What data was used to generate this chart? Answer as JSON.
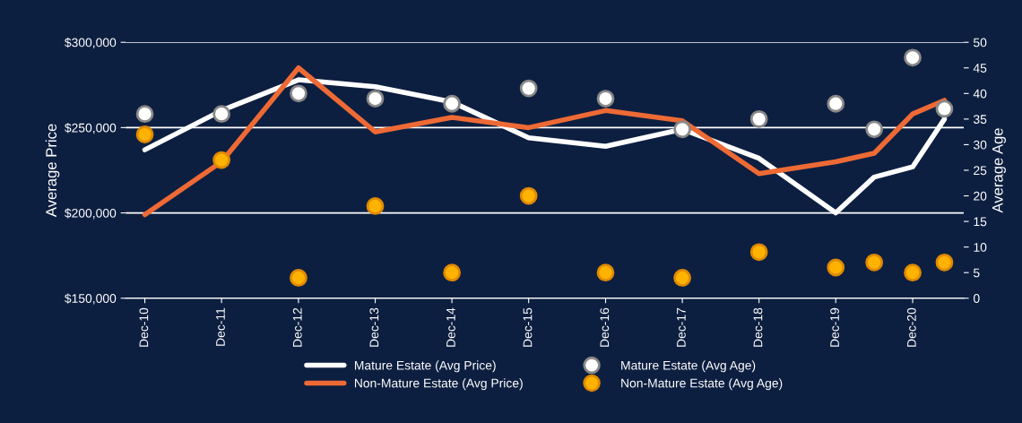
{
  "chart_data": {
    "type": "line",
    "ylabel": "Average Price",
    "y2label": "Average Age",
    "x": [
      "2010-12-01",
      "2011-12-01",
      "2012-12-01",
      "2013-12-01",
      "2014-12-01",
      "2015-12-01",
      "2016-12-01",
      "2017-12-01",
      "2018-12-01",
      "2019-12-01",
      "2020-06-01",
      "2020-12-01",
      "2021-05-01"
    ],
    "xlim": [
      "2010-09-01",
      "2021-08-01"
    ],
    "xticks": [
      {
        "value": "2010-12-01",
        "label": "Dec-10"
      },
      {
        "value": "2011-12-01",
        "label": "Dec-11"
      },
      {
        "value": "2012-12-01",
        "label": "Dec-12"
      },
      {
        "value": "2013-12-01",
        "label": "Dec-13"
      },
      {
        "value": "2014-12-01",
        "label": "Dec-14"
      },
      {
        "value": "2015-12-01",
        "label": "Dec-15"
      },
      {
        "value": "2016-12-01",
        "label": "Dec-16"
      },
      {
        "value": "2017-12-01",
        "label": "Dec-17"
      },
      {
        "value": "2018-12-01",
        "label": "Dec-18"
      },
      {
        "value": "2019-12-01",
        "label": "Dec-19"
      },
      {
        "value": "2020-12-01",
        "label": "Dec-20"
      }
    ],
    "ylim": [
      150000,
      300000
    ],
    "yticks": [
      {
        "value": 150000,
        "label": "$150,000"
      },
      {
        "value": 200000,
        "label": "$200,000"
      },
      {
        "value": 250000,
        "label": "$250,000"
      },
      {
        "value": 300000,
        "label": "$300,000"
      }
    ],
    "y2lim": [
      0,
      50
    ],
    "y2ticks": [
      0,
      5,
      10,
      15,
      20,
      25,
      30,
      35,
      40,
      45,
      50
    ],
    "grid": "y",
    "legend": "bottom",
    "series": [
      {
        "name": "Mature Estate (Avg Price)",
        "color": "#ffffff",
        "values": [
          237000,
          260000,
          278000,
          274000,
          265000,
          244000,
          239000,
          249000,
          232000,
          200000,
          221000,
          227000,
          255000
        ]
      },
      {
        "name": "Non-Mature Estate (Avg Price)",
        "color": "#ee6a35",
        "values": [
          199000,
          230000,
          285000,
          247500,
          256000,
          250000,
          260000,
          254000,
          223000,
          230000,
          235000,
          258000,
          266000
        ]
      },
      {
        "name": "Mature Estate (Avg Age)",
        "type": "scatter",
        "axis": "y2",
        "marker": "circle",
        "color": "#ffffff",
        "values": [
          36,
          36,
          40,
          39,
          38,
          41,
          39,
          33,
          35,
          38,
          33,
          47,
          37
        ]
      },
      {
        "name": "Non-Mature Estate (Avg Age)",
        "type": "scatter",
        "axis": "y2",
        "marker": "circle",
        "color": "#ffb300",
        "values": [
          32,
          27,
          4,
          18,
          5,
          20,
          5,
          4,
          9,
          6,
          7,
          5,
          7
        ]
      }
    ]
  }
}
